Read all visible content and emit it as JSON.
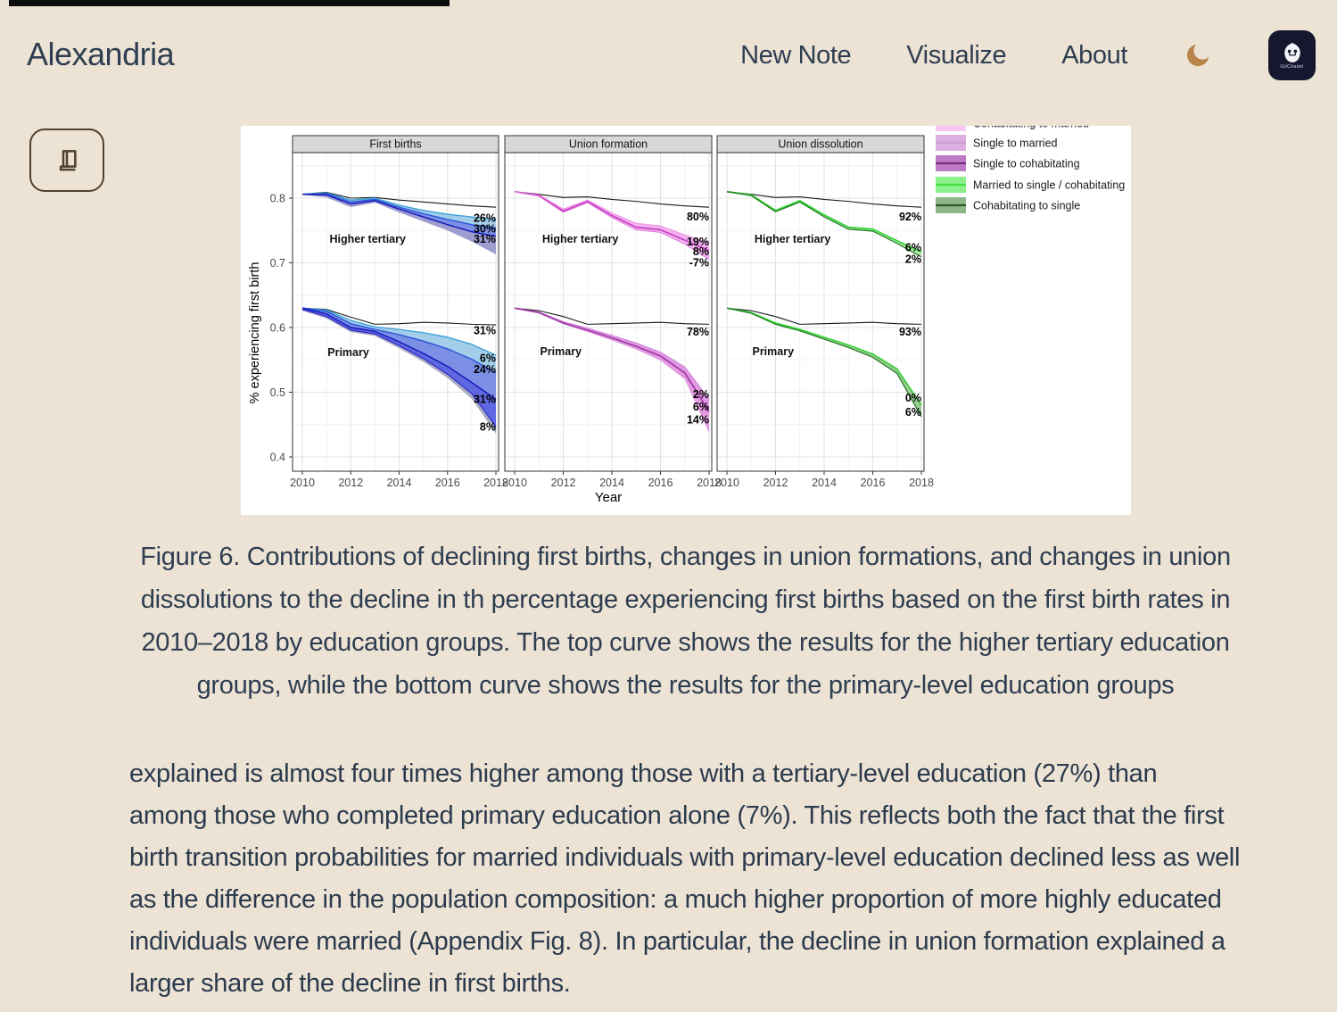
{
  "header": {
    "brand": "Alexandria",
    "nav": [
      {
        "label": "New Note"
      },
      {
        "label": "Visualize"
      },
      {
        "label": "About"
      }
    ],
    "logo_text": "GitCitadel",
    "accent_moon_color": "#b9854b"
  },
  "figure": {
    "caption": "Figure 6. Contributions of declining first births, changes in union formations, and changes in union dissolutions to the decline in th percentage experiencing first births based on the first birth rates in 2010–2018 by education groups. The top curve shows the results for the higher tertiary education groups, while the bottom curve shows the results for the primary-level education groups"
  },
  "article": {
    "paragraph": "explained is almost four times higher among those with a tertiary-level education (27%) than among those who completed primary education alone (7%). This reflects both the fact that the first birth transition probabilities for married individuals with primary-level education declined less as well as the difference in the population composition: a much higher proportion of more highly educated individuals were married (Appendix Fig. 8). In particular, the decline in union formation explained a larger share of the decline in first births."
  },
  "chart_data": {
    "type": "area",
    "x": [
      2010,
      2011,
      2012,
      2013,
      2014,
      2015,
      2016,
      2017,
      2018
    ],
    "xlabel": "Year",
    "ylabel": "% experiencing first birth",
    "ylim": [
      0.38,
      0.87
    ],
    "yticks": [
      0.4,
      0.5,
      0.6,
      0.7,
      0.8
    ],
    "xticks": [
      2010,
      2012,
      2014,
      2016,
      2018
    ],
    "grid": true,
    "legend_position": "top-right",
    "legend": [
      {
        "label": "Cohabitating to married",
        "fill": "#f7c4f3",
        "line": "#ee8fe2",
        "partially_cut": true
      },
      {
        "label": "Single to married",
        "fill": "#dcaee2",
        "line": "#cf9ad8",
        "partially_cut": false
      },
      {
        "label": "Single to cohabitating",
        "fill": "#bd7cc4",
        "line": "#7c2a84",
        "partially_cut": false
      },
      {
        "label": "Married to single / cohabitating",
        "fill": "#8cf08c",
        "line": "#44e044",
        "partially_cut": false
      },
      {
        "label": "Cohabitating to single",
        "fill": "#8fb48a",
        "line": "#275c27",
        "partially_cut": false
      }
    ],
    "panels": [
      {
        "title": "First births",
        "groups": [
          {
            "name": "Higher tertiary",
            "label_at": {
              "x": 2012.7,
              "y": 0.731
            },
            "series": [
              [
                0.806,
                0.809,
                0.8,
                0.801,
                0.797,
                0.794,
                0.791,
                0.788,
                0.786
              ],
              [
                0.806,
                0.808,
                0.797,
                0.8,
                0.789,
                0.781,
                0.775,
                0.771,
                0.767
              ],
              [
                0.806,
                0.807,
                0.794,
                0.798,
                0.786,
                0.776,
                0.767,
                0.759,
                0.754
              ],
              [
                0.806,
                0.805,
                0.791,
                0.796,
                0.783,
                0.771,
                0.759,
                0.748,
                0.741
              ],
              [
                0.805,
                0.801,
                0.786,
                0.793,
                0.778,
                0.764,
                0.75,
                0.733,
                0.713
              ]
            ],
            "strokes": [
              {
                "i": 0,
                "c": "#1a1a1a",
                "w": 1.1
              },
              {
                "i": 1,
                "c": "#3fa3d6",
                "w": 1.4
              },
              {
                "i": 2,
                "c": "#2b55d8",
                "w": 1.4
              },
              {
                "i": 3,
                "c": "#1515b8",
                "w": 1.4
              }
            ],
            "bands": [
              {
                "u": 1,
                "l": 2,
                "f": "#a3cde9"
              },
              {
                "u": 2,
                "l": 3,
                "f": "#7b8fe4"
              },
              {
                "u": 3,
                "l": 4,
                "f": "#9d9dd0"
              }
            ],
            "ann": [
              {
                "t": "26%",
                "y": 0.77
              },
              {
                "t": "30%",
                "y": 0.753
              },
              {
                "t": "31%",
                "y": 0.737
              }
            ]
          },
          {
            "name": "Primary",
            "label_at": {
              "x": 2011.9,
              "y": 0.556
            },
            "series": [
              [
                0.63,
                0.628,
                0.616,
                0.605,
                0.606,
                0.608,
                0.607,
                0.605,
                0.604
              ],
              [
                0.63,
                0.627,
                0.611,
                0.601,
                0.597,
                0.592,
                0.585,
                0.574,
                0.557
              ],
              [
                0.63,
                0.625,
                0.606,
                0.597,
                0.589,
                0.579,
                0.567,
                0.551,
                0.53
              ],
              [
                0.63,
                0.621,
                0.6,
                0.594,
                0.578,
                0.56,
                0.54,
                0.515,
                0.489
              ],
              [
                0.628,
                0.617,
                0.596,
                0.59,
                0.572,
                0.552,
                0.528,
                0.498,
                0.447
              ],
              [
                0.626,
                0.614,
                0.593,
                0.587,
                0.568,
                0.547,
                0.522,
                0.49,
                0.436
              ]
            ],
            "strokes": [
              {
                "i": 0,
                "c": "#1a1a1a",
                "w": 1.1
              },
              {
                "i": 1,
                "c": "#3fa3d6",
                "w": 1.4
              },
              {
                "i": 2,
                "c": "#2b55d8",
                "w": 1.4
              },
              {
                "i": 3,
                "c": "#1515b8",
                "w": 1.4
              },
              {
                "i": 4,
                "c": "#2a2ac8",
                "w": 1.2
              }
            ],
            "bands": [
              {
                "u": 1,
                "l": 2,
                "f": "#a3cde9"
              },
              {
                "u": 2,
                "l": 3,
                "f": "#7b8fe4"
              },
              {
                "u": 3,
                "l": 4,
                "f": "#5f68e0"
              },
              {
                "u": 4,
                "l": 5,
                "f": "#a9a9c4"
              }
            ],
            "ann": [
              {
                "t": "31%",
                "y": 0.596
              },
              {
                "t": "6%",
                "y": 0.553
              },
              {
                "t": "24%",
                "y": 0.536
              },
              {
                "t": "31%",
                "y": 0.49
              },
              {
                "t": "8%",
                "y": 0.447
              }
            ]
          }
        ]
      },
      {
        "title": "Union formation",
        "groups": [
          {
            "name": "Higher tertiary",
            "label_at": {
              "x": 2012.7,
              "y": 0.731
            },
            "series": [
              [
                0.81,
                0.806,
                0.801,
                0.802,
                0.798,
                0.795,
                0.791,
                0.788,
                0.786
              ],
              [
                0.81,
                0.805,
                0.783,
                0.797,
                0.777,
                0.761,
                0.757,
                0.743,
                0.731
              ],
              [
                0.81,
                0.804,
                0.78,
                0.795,
                0.773,
                0.755,
                0.751,
                0.735,
                0.719
              ],
              [
                0.81,
                0.803,
                0.778,
                0.793,
                0.77,
                0.751,
                0.747,
                0.729,
                0.705
              ]
            ],
            "strokes": [
              {
                "i": 0,
                "c": "#1a1a1a",
                "w": 1.1
              },
              {
                "i": 1,
                "c": "#f09ae6",
                "w": 1.2
              },
              {
                "i": 2,
                "c": "#c93fc9",
                "w": 1.7
              },
              {
                "i": 3,
                "c": "#e078dc",
                "w": 1.0
              }
            ],
            "bands": [
              {
                "u": 1,
                "l": 3,
                "f": "#f2b3ee"
              }
            ],
            "ann": [
              {
                "t": "80%",
                "y": 0.772
              },
              {
                "t": "19%",
                "y": 0.733
              },
              {
                "t": "8%",
                "y": 0.718
              },
              {
                "t": "-7%",
                "y": 0.701
              }
            ]
          },
          {
            "name": "Primary",
            "label_at": {
              "x": 2011.9,
              "y": 0.557
            },
            "series": [
              [
                0.63,
                0.626,
                0.617,
                0.605,
                0.606,
                0.607,
                0.608,
                0.606,
                0.605
              ],
              [
                0.63,
                0.624,
                0.609,
                0.599,
                0.588,
                0.576,
                0.562,
                0.539,
                0.489
              ],
              [
                0.63,
                0.623,
                0.607,
                0.596,
                0.584,
                0.571,
                0.556,
                0.53,
                0.47
              ],
              [
                0.63,
                0.622,
                0.605,
                0.593,
                0.58,
                0.566,
                0.549,
                0.52,
                0.437
              ]
            ],
            "strokes": [
              {
                "i": 0,
                "c": "#1a1a1a",
                "w": 1.1
              },
              {
                "i": 1,
                "c": "#d080d8",
                "w": 1.0
              },
              {
                "i": 2,
                "c": "#a03ca8",
                "w": 1.7
              }
            ],
            "bands": [
              {
                "u": 1,
                "l": 3,
                "f": "#e29ae2"
              }
            ],
            "ann": [
              {
                "t": "78%",
                "y": 0.594
              },
              {
                "t": "2%",
                "y": 0.497
              },
              {
                "t": "6%",
                "y": 0.478
              },
              {
                "t": "14%",
                "y": 0.458
              }
            ]
          }
        ]
      },
      {
        "title": "Union dissolution",
        "groups": [
          {
            "name": "Higher tertiary",
            "label_at": {
              "x": 2012.7,
              "y": 0.731
            },
            "series": [
              [
                0.81,
                0.806,
                0.801,
                0.802,
                0.798,
                0.795,
                0.791,
                0.788,
                0.786
              ],
              [
                0.81,
                0.805,
                0.781,
                0.796,
                0.774,
                0.755,
                0.752,
                0.734,
                0.717
              ],
              [
                0.81,
                0.804,
                0.779,
                0.794,
                0.771,
                0.752,
                0.749,
                0.73,
                0.709
              ]
            ],
            "strokes": [
              {
                "i": 0,
                "c": "#1a1a1a",
                "w": 1.1
              },
              {
                "i": 1,
                "c": "#35d435",
                "w": 1.8
              },
              {
                "i": 2,
                "c": "#1f7a1f",
                "w": 1.2
              }
            ],
            "bands": [
              {
                "u": 1,
                "l": 2,
                "f": "#b5e5ac"
              }
            ],
            "ann": [
              {
                "t": "92%",
                "y": 0.772
              },
              {
                "t": "6%",
                "y": 0.724
              },
              {
                "t": "2%",
                "y": 0.706
              }
            ]
          },
          {
            "name": "Primary",
            "label_at": {
              "x": 2011.9,
              "y": 0.557
            },
            "series": [
              [
                0.63,
                0.626,
                0.617,
                0.605,
                0.606,
                0.607,
                0.608,
                0.606,
                0.605
              ],
              [
                0.63,
                0.623,
                0.607,
                0.597,
                0.585,
                0.573,
                0.559,
                0.536,
                0.48
              ],
              [
                0.63,
                0.622,
                0.605,
                0.595,
                0.582,
                0.569,
                0.554,
                0.529,
                0.462
              ]
            ],
            "strokes": [
              {
                "i": 0,
                "c": "#1a1a1a",
                "w": 1.1
              },
              {
                "i": 1,
                "c": "#35d435",
                "w": 1.6
              },
              {
                "i": 2,
                "c": "#1f7a1f",
                "w": 1.2
              }
            ],
            "bands": [
              {
                "u": 1,
                "l": 2,
                "f": "#9cc996"
              }
            ],
            "ann": [
              {
                "t": "93%",
                "y": 0.594
              },
              {
                "t": "0%",
                "y": 0.492
              },
              {
                "t": "6%",
                "y": 0.47
              }
            ]
          }
        ]
      }
    ]
  }
}
